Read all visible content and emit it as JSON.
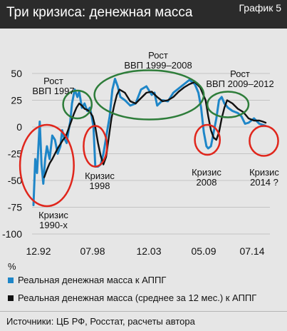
{
  "title": "Три кризиса: денежная масса",
  "tag": "График 5",
  "unit": "%",
  "source": "Источники: ЦБ РФ, Росстат, расчеты автора",
  "colors": {
    "real": "#1e86c8",
    "avg": "#111111",
    "crisis": "#e0261c",
    "boom": "#2e7d3a",
    "panel": "#e6e6e6",
    "header": "#2b2b2b"
  },
  "chart_data": {
    "type": "line",
    "title": "Три кризиса: денежная масса",
    "ylabel": "%",
    "ylim": [
      -100,
      50
    ],
    "yticks": [
      50,
      25,
      0,
      -25,
      -50,
      -75,
      -100
    ],
    "xlim": [
      "1992-12",
      "2014-07"
    ],
    "xticks": [
      "12.92",
      "07.98",
      "12.03",
      "05.09",
      "07.14"
    ],
    "legend": "bottom",
    "series": [
      {
        "name": "Реальная денежная масса к АППГ",
        "color": "#1e86c8",
        "points": [
          [
            "1992-12",
            -73
          ],
          [
            "1993-02",
            -30
          ],
          [
            "1993-04",
            -43
          ],
          [
            "1993-07",
            5
          ],
          [
            "1993-09",
            -35
          ],
          [
            "1993-11",
            -53
          ],
          [
            "1994-01",
            -30
          ],
          [
            "1994-03",
            -18
          ],
          [
            "1994-06",
            -30
          ],
          [
            "1994-09",
            -8
          ],
          [
            "1994-12",
            -12
          ],
          [
            "1995-03",
            -25
          ],
          [
            "1995-06",
            -18
          ],
          [
            "1995-08",
            -3
          ],
          [
            "1995-10",
            -10
          ],
          [
            "1996-01",
            -15
          ],
          [
            "1996-03",
            -4
          ],
          [
            "1996-05",
            5
          ],
          [
            "1996-07",
            22
          ],
          [
            "1996-10",
            35
          ],
          [
            "1997-01",
            28
          ],
          [
            "1997-03",
            33
          ],
          [
            "1997-06",
            18
          ],
          [
            "1997-09",
            22
          ],
          [
            "1997-12",
            15
          ],
          [
            "1998-03",
            18
          ],
          [
            "1998-05",
            10
          ],
          [
            "1998-07",
            0
          ],
          [
            "1998-09",
            -37
          ],
          [
            "1998-12",
            -37
          ],
          [
            "1999-03",
            -35
          ],
          [
            "1999-06",
            -25
          ],
          [
            "1999-10",
            -5
          ],
          [
            "2000-01",
            10
          ],
          [
            "2000-04",
            35
          ],
          [
            "2000-07",
            45
          ],
          [
            "2000-10",
            38
          ],
          [
            "2001-01",
            28
          ],
          [
            "2001-06",
            25
          ],
          [
            "2001-12",
            20
          ],
          [
            "2002-06",
            22
          ],
          [
            "2002-12",
            35
          ],
          [
            "2003-06",
            38
          ],
          [
            "2003-12",
            30
          ],
          [
            "2004-03",
            32
          ],
          [
            "2004-06",
            20
          ],
          [
            "2004-12",
            25
          ],
          [
            "2005-06",
            24
          ],
          [
            "2005-12",
            32
          ],
          [
            "2006-06",
            36
          ],
          [
            "2006-12",
            40
          ],
          [
            "2007-06",
            44
          ],
          [
            "2007-12",
            40
          ],
          [
            "2008-04",
            32
          ],
          [
            "2008-07",
            18
          ],
          [
            "2008-10",
            -5
          ],
          [
            "2009-01",
            -18
          ],
          [
            "2009-03",
            -20
          ],
          [
            "2009-06",
            -18
          ],
          [
            "2009-09",
            -5
          ],
          [
            "2009-12",
            8
          ],
          [
            "2010-03",
            25
          ],
          [
            "2010-06",
            28
          ],
          [
            "2010-09",
            22
          ],
          [
            "2011-01",
            18
          ],
          [
            "2011-06",
            15
          ],
          [
            "2011-12",
            13
          ],
          [
            "2012-04",
            10
          ],
          [
            "2012-08",
            3
          ],
          [
            "2012-12",
            4
          ],
          [
            "2013-06",
            8
          ],
          [
            "2013-12",
            3
          ],
          [
            "2014-04",
            2
          ],
          [
            "2014-07",
            1
          ]
        ]
      },
      {
        "name": "Реальная денежная масса (среднее за 12 мес.) к АППГ",
        "color": "#111111",
        "points": [
          [
            "1993-12",
            -47
          ],
          [
            "1994-03",
            -40
          ],
          [
            "1994-06",
            -34
          ],
          [
            "1994-09",
            -30
          ],
          [
            "1994-12",
            -25
          ],
          [
            "1995-03",
            -20
          ],
          [
            "1995-06",
            -16
          ],
          [
            "1995-09",
            -12
          ],
          [
            "1995-12",
            -9
          ],
          [
            "1996-03",
            -2
          ],
          [
            "1996-06",
            5
          ],
          [
            "1996-09",
            12
          ],
          [
            "1996-12",
            18
          ],
          [
            "1997-03",
            22
          ],
          [
            "1997-06",
            20
          ],
          [
            "1997-09",
            17
          ],
          [
            "1997-12",
            16
          ],
          [
            "1998-03",
            14
          ],
          [
            "1998-06",
            10
          ],
          [
            "1998-09",
            0
          ],
          [
            "1998-12",
            -15
          ],
          [
            "1999-03",
            -27
          ],
          [
            "1999-06",
            -35
          ],
          [
            "1999-09",
            -28
          ],
          [
            "1999-12",
            -10
          ],
          [
            "2000-03",
            8
          ],
          [
            "2000-06",
            20
          ],
          [
            "2000-09",
            30
          ],
          [
            "2000-12",
            35
          ],
          [
            "2001-06",
            32
          ],
          [
            "2001-12",
            24
          ],
          [
            "2002-06",
            22
          ],
          [
            "2002-12",
            27
          ],
          [
            "2003-06",
            32
          ],
          [
            "2003-12",
            33
          ],
          [
            "2004-06",
            28
          ],
          [
            "2004-12",
            24
          ],
          [
            "2005-06",
            25
          ],
          [
            "2005-12",
            28
          ],
          [
            "2006-06",
            33
          ],
          [
            "2006-12",
            37
          ],
          [
            "2007-06",
            40
          ],
          [
            "2007-12",
            42
          ],
          [
            "2008-06",
            37
          ],
          [
            "2008-12",
            25
          ],
          [
            "2009-03",
            10
          ],
          [
            "2009-06",
            -3
          ],
          [
            "2009-09",
            -10
          ],
          [
            "2009-12",
            -12
          ],
          [
            "2010-03",
            -5
          ],
          [
            "2010-06",
            8
          ],
          [
            "2010-09",
            18
          ],
          [
            "2010-12",
            25
          ],
          [
            "2011-06",
            22
          ],
          [
            "2011-12",
            17
          ],
          [
            "2012-06",
            14
          ],
          [
            "2012-12",
            8
          ],
          [
            "2013-06",
            6
          ],
          [
            "2013-12",
            6
          ],
          [
            "2014-04",
            5
          ],
          [
            "2014-07",
            4
          ]
        ]
      }
    ],
    "annotations": [
      {
        "text": "Рост ВВП 1997",
        "kind": "boom",
        "center": [
          "1997-01",
          21
        ],
        "rx_months": 16,
        "ry_units": 13
      },
      {
        "text": "Рост ВВП 1999–2008",
        "kind": "boom",
        "center": [
          "2003-09",
          30
        ],
        "rx_months": 61,
        "ry_units": 23
      },
      {
        "text": "Рост ВВП 2009–2012",
        "kind": "boom",
        "center": [
          "2011-01",
          21
        ],
        "rx_months": 23,
        "ry_units": 12
      },
      {
        "text": "Кризис 1990-х",
        "kind": "crisis",
        "center": [
          "1994-03",
          -36
        ],
        "rx_months": 30,
        "ry_units": 38
      },
      {
        "text": "Кризис 1998",
        "kind": "crisis",
        "center": [
          "1998-09",
          -18
        ],
        "rx_months": 13,
        "ry_units": 19
      },
      {
        "text": "Кризис 2008",
        "kind": "crisis",
        "center": [
          "2009-02",
          -12
        ],
        "rx_months": 14,
        "ry_units": 14
      },
      {
        "text": "Кризис 2014 ?",
        "kind": "crisis",
        "center": [
          "2014-05",
          -13
        ],
        "rx_months": 16,
        "ry_units": 14
      }
    ]
  }
}
